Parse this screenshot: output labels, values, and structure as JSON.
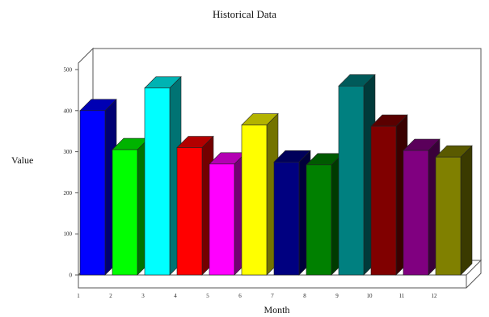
{
  "chart_data": {
    "type": "bar",
    "title": "Historical Data",
    "xlabel": "Month",
    "ylabel": "Value",
    "categories": [
      "1",
      "2",
      "3",
      "4",
      "5",
      "6",
      "7",
      "8",
      "9",
      "10",
      "11",
      "12"
    ],
    "values": [
      400,
      305,
      455,
      310,
      270,
      365,
      275,
      268,
      460,
      362,
      303,
      287
    ],
    "yticks": [
      0,
      100,
      200,
      300,
      400,
      500
    ],
    "ylim": [
      0,
      500
    ],
    "grid": false,
    "style": "3d",
    "colors": [
      "#0000ff",
      "#00ff00",
      "#00ffff",
      "#ff0000",
      "#ff00ff",
      "#ffff00",
      "#000080",
      "#008000",
      "#008080",
      "#800000",
      "#800080",
      "#808000"
    ]
  }
}
